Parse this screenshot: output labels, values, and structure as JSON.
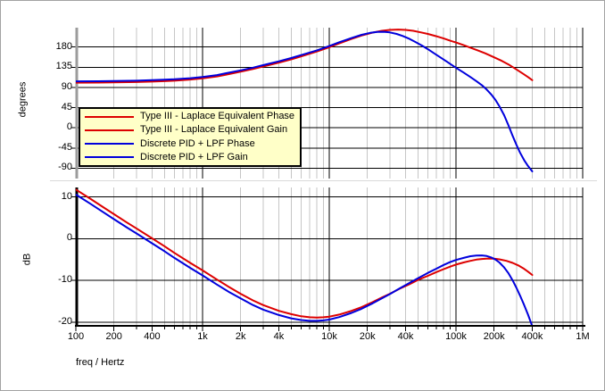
{
  "window": {
    "background": "#ffffff",
    "border_color": "#a3a3a3"
  },
  "colors": {
    "red_trace": "#dd0000",
    "blue_trace": "#0000dd",
    "grid_minor": "#c6c6c6",
    "grid_major": "#000000",
    "phase_axis_line": "#9c9c9c",
    "legend_background": "#ffffc8",
    "legend_border": "#000000",
    "panel_separator": "#d9d9d9"
  },
  "legend": {
    "items": [
      {
        "label": "Type III - Laplace Equivalent Phase",
        "color": "#dd0000"
      },
      {
        "label": "Type III - Laplace Equivalent Gain",
        "color": "#dd0000"
      },
      {
        "label": "Discrete PID + LPF Phase",
        "color": "#0000dd"
      },
      {
        "label": "Discrete PID + LPF Gain",
        "color": "#0000dd"
      }
    ]
  },
  "xaxis": {
    "label": "freq / Hertz",
    "scale": "log",
    "xlim": [
      100,
      1000000
    ],
    "tick_values": [
      100,
      200,
      400,
      1000,
      2000,
      4000,
      10000,
      20000,
      40000,
      100000,
      200000,
      400000,
      1000000
    ],
    "tick_labels": [
      "100",
      "200",
      "400",
      "1k",
      "2k",
      "4k",
      "10k",
      "20k",
      "40k",
      "100k",
      "200k",
      "400k",
      "1M"
    ]
  },
  "chart_data": [
    {
      "type": "line",
      "panel": "phase",
      "ylabel": "degrees",
      "yticks": [
        180,
        135,
        90,
        45,
        0,
        -45,
        -90
      ],
      "ylim": [
        -113,
        223
      ],
      "xlim": [
        100,
        1000000
      ],
      "xscale": "log",
      "grid": true,
      "legend_position": "upper-left-inside",
      "series": [
        {
          "name": "Type III - Laplace Equivalent Phase",
          "color": "#dd0000",
          "points": [
            [
              100,
              100.5
            ],
            [
              150,
              100.8
            ],
            [
              200,
              101.2
            ],
            [
              300,
              102
            ],
            [
              400,
              103
            ],
            [
              500,
              104
            ],
            [
              600,
              105
            ],
            [
              800,
              107.5
            ],
            [
              1000,
              110
            ],
            [
              1300,
              114.5
            ],
            [
              1600,
              119.5
            ],
            [
              2000,
              125
            ],
            [
              2500,
              131
            ],
            [
              3000,
              136.5
            ],
            [
              4000,
              145
            ],
            [
              5000,
              152.5
            ],
            [
              6000,
              159
            ],
            [
              8000,
              170
            ],
            [
              10000,
              179.5
            ],
            [
              12000,
              188
            ],
            [
              15000,
              198
            ],
            [
              18000,
              205.5
            ],
            [
              22000,
              212
            ],
            [
              26000,
              216
            ],
            [
              30000,
              218
            ],
            [
              35000,
              218.8
            ],
            [
              40000,
              218
            ],
            [
              46000,
              216
            ],
            [
              53000,
              212.5
            ],
            [
              60000,
              209
            ],
            [
              70000,
              204
            ],
            [
              80000,
              199
            ],
            [
              90000,
              194
            ],
            [
              100000,
              190
            ],
            [
              115000,
              184
            ],
            [
              130000,
              178.5
            ],
            [
              150000,
              172
            ],
            [
              170000,
              166
            ],
            [
              200000,
              157
            ],
            [
              230000,
              149
            ],
            [
              260000,
              141
            ],
            [
              300000,
              130
            ],
            [
              340000,
              120
            ],
            [
              370000,
              113
            ],
            [
              400000,
              106
            ]
          ]
        },
        {
          "name": "Discrete PID + LPF Phase",
          "color": "#0000dd",
          "points": [
            [
              100,
              103.5
            ],
            [
              150,
              103.8
            ],
            [
              200,
              104.2
            ],
            [
              300,
              105
            ],
            [
              400,
              106
            ],
            [
              500,
              107
            ],
            [
              600,
              108
            ],
            [
              800,
              110.5
            ],
            [
              1000,
              113
            ],
            [
              1300,
              117.5
            ],
            [
              1600,
              122.5
            ],
            [
              2000,
              128
            ],
            [
              2500,
              134
            ],
            [
              3000,
              139.5
            ],
            [
              4000,
              148
            ],
            [
              5000,
              155.5
            ],
            [
              6000,
              162
            ],
            [
              8000,
              172.5
            ],
            [
              10000,
              182
            ],
            [
              12000,
              190.5
            ],
            [
              15000,
              200
            ],
            [
              18000,
              207
            ],
            [
              21000,
              211.5
            ],
            [
              24000,
              213.5
            ],
            [
              27000,
              213.8
            ],
            [
              30000,
              212.5
            ],
            [
              34000,
              209
            ],
            [
              38000,
              204.5
            ],
            [
              43000,
              198
            ],
            [
              48000,
              191
            ],
            [
              54000,
              183
            ],
            [
              60000,
              175
            ],
            [
              68000,
              165
            ],
            [
              76000,
              156
            ],
            [
              85000,
              147
            ],
            [
              95000,
              138
            ],
            [
              105000,
              130
            ],
            [
              115000,
              123
            ],
            [
              130000,
              113
            ],
            [
              145000,
              104
            ],
            [
              160000,
              95
            ],
            [
              175000,
              85
            ],
            [
              190000,
              74
            ],
            [
              205000,
              62
            ],
            [
              220000,
              48
            ],
            [
              240000,
              28
            ],
            [
              260000,
              5
            ],
            [
              280000,
              -18
            ],
            [
              300000,
              -38
            ],
            [
              320000,
              -55
            ],
            [
              345000,
              -72
            ],
            [
              370000,
              -85
            ],
            [
              400000,
              -97
            ]
          ]
        }
      ]
    },
    {
      "type": "line",
      "panel": "gain",
      "ylabel": "dB",
      "yticks": [
        10,
        0,
        -10,
        -20
      ],
      "ylim": [
        -20.9,
        12.3
      ],
      "xlim": [
        100,
        1000000
      ],
      "xscale": "log",
      "grid": true,
      "series": [
        {
          "name": "Type III - Laplace Equivalent Gain",
          "color": "#dd0000",
          "points": [
            [
              100,
              11.8
            ],
            [
              130,
              9.6
            ],
            [
              160,
              7.8
            ],
            [
              200,
              5.9
            ],
            [
              250,
              4.0
            ],
            [
              300,
              2.5
            ],
            [
              400,
              0.1
            ],
            [
              500,
              -1.8
            ],
            [
              600,
              -3.4
            ],
            [
              800,
              -5.8
            ],
            [
              1000,
              -7.6
            ],
            [
              1300,
              -9.8
            ],
            [
              1600,
              -11.5
            ],
            [
              2000,
              -13.2
            ],
            [
              2500,
              -14.8
            ],
            [
              3000,
              -15.9
            ],
            [
              4000,
              -17.3
            ],
            [
              5000,
              -18.1
            ],
            [
              6000,
              -18.6
            ],
            [
              7000,
              -18.85
            ],
            [
              8000,
              -18.9
            ],
            [
              9000,
              -18.85
            ],
            [
              10000,
              -18.7
            ],
            [
              12000,
              -18.2
            ],
            [
              15000,
              -17.3
            ],
            [
              18000,
              -16.4
            ],
            [
              22000,
              -15.2
            ],
            [
              26000,
              -14.1
            ],
            [
              30000,
              -13.2
            ],
            [
              36000,
              -12.0
            ],
            [
              43000,
              -10.9
            ],
            [
              50000,
              -9.9
            ],
            [
              60000,
              -8.9
            ],
            [
              70000,
              -8.0
            ],
            [
              80000,
              -7.3
            ],
            [
              90000,
              -6.7
            ],
            [
              100000,
              -6.2
            ],
            [
              115000,
              -5.7
            ],
            [
              130000,
              -5.3
            ],
            [
              145000,
              -5.0
            ],
            [
              160000,
              -4.85
            ],
            [
              180000,
              -4.75
            ],
            [
              200000,
              -4.8
            ],
            [
              220000,
              -4.95
            ],
            [
              250000,
              -5.3
            ],
            [
              280000,
              -5.8
            ],
            [
              310000,
              -6.4
            ],
            [
              340000,
              -7.1
            ],
            [
              370000,
              -7.9
            ],
            [
              400000,
              -8.7
            ]
          ]
        },
        {
          "name": "Discrete PID + LPF Gain",
          "color": "#0000dd",
          "points": [
            [
              100,
              10.6
            ],
            [
              130,
              8.4
            ],
            [
              160,
              6.6
            ],
            [
              200,
              4.7
            ],
            [
              250,
              2.8
            ],
            [
              300,
              1.3
            ],
            [
              400,
              -1.1
            ],
            [
              500,
              -3.0
            ],
            [
              600,
              -4.6
            ],
            [
              800,
              -7.0
            ],
            [
              1000,
              -8.8
            ],
            [
              1300,
              -11.0
            ],
            [
              1600,
              -12.7
            ],
            [
              2000,
              -14.3
            ],
            [
              2500,
              -15.9
            ],
            [
              3000,
              -17.0
            ],
            [
              4000,
              -18.3
            ],
            [
              5000,
              -19.1
            ],
            [
              6000,
              -19.5
            ],
            [
              7000,
              -19.7
            ],
            [
              8000,
              -19.7
            ],
            [
              9000,
              -19.6
            ],
            [
              10000,
              -19.4
            ],
            [
              12000,
              -18.8
            ],
            [
              15000,
              -17.8
            ],
            [
              18000,
              -16.8
            ],
            [
              22000,
              -15.5
            ],
            [
              26000,
              -14.3
            ],
            [
              30000,
              -13.3
            ],
            [
              36000,
              -11.9
            ],
            [
              43000,
              -10.6
            ],
            [
              50000,
              -9.5
            ],
            [
              60000,
              -8.2
            ],
            [
              70000,
              -7.2
            ],
            [
              80000,
              -6.3
            ],
            [
              90000,
              -5.6
            ],
            [
              100000,
              -5.1
            ],
            [
              115000,
              -4.6
            ],
            [
              130000,
              -4.2
            ],
            [
              145000,
              -4.05
            ],
            [
              160000,
              -4.0
            ],
            [
              175000,
              -4.15
            ],
            [
              190000,
              -4.5
            ],
            [
              205000,
              -5.0
            ],
            [
              220000,
              -5.7
            ],
            [
              240000,
              -6.9
            ],
            [
              260000,
              -8.3
            ],
            [
              280000,
              -10.0
            ],
            [
              300000,
              -11.8
            ],
            [
              320000,
              -13.6
            ],
            [
              345000,
              -15.9
            ],
            [
              370000,
              -18.2
            ],
            [
              400000,
              -21.0
            ]
          ]
        }
      ]
    }
  ]
}
